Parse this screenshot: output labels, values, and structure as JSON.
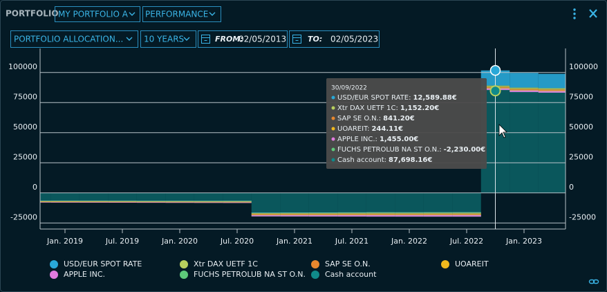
{
  "header": {
    "label": "PORTFOLIO",
    "portfolio": "MY PORTFOLIO A",
    "view": "PERFORMANCE"
  },
  "toolbar": {
    "allocation": "PORTFOLIO ALLOCATION...",
    "period": "10 YEARS",
    "from_label": "FROM:",
    "from": "02/05/2013",
    "to_label": "TO:",
    "to": "02/05/2023"
  },
  "chart_data": {
    "type": "stacked-area",
    "grid": true,
    "categories": [
      null,
      "Jan. 2019",
      null,
      "Jul. 2019",
      null,
      "Jan. 2020",
      null,
      "Jul. 2020",
      null,
      "Jan. 2021",
      null,
      "Jul. 2021",
      null,
      "Jan. 2022",
      null,
      "Jul. 2022",
      null,
      "Jan. 2023",
      null
    ],
    "ylim": [
      -30000,
      120000
    ],
    "yticks": [
      -25000,
      0,
      25000,
      50000,
      75000,
      100000
    ],
    "series": [
      {
        "name": "USD/EUR SPOT RATE",
        "color": "#29a8d8",
        "values": [
          0,
          0,
          0,
          0,
          0,
          0,
          0,
          0,
          0,
          0,
          0,
          0,
          0,
          0,
          0,
          0,
          12589.88,
          12200,
          11900
        ]
      },
      {
        "name": "Xtr DAX UETF 1C",
        "color": "#b8cf5e",
        "values": [
          600,
          620,
          640,
          650,
          600,
          610,
          580,
          620,
          900,
          950,
          1000,
          1050,
          1100,
          1080,
          1120,
          1140,
          1152.2,
          1160,
          1170
        ]
      },
      {
        "name": "SAP SE O.N.",
        "color": "#e8872e",
        "values": [
          300,
          310,
          320,
          330,
          300,
          310,
          300,
          320,
          800,
          820,
          830,
          850,
          860,
          840,
          830,
          835,
          841.2,
          850,
          860
        ]
      },
      {
        "name": "UOAREIT",
        "color": "#f0b81d",
        "values": [
          200,
          210,
          205,
          200,
          210,
          215,
          220,
          225,
          230,
          235,
          240,
          242,
          243,
          244,
          244,
          244,
          244.11,
          245,
          246
        ]
      },
      {
        "name": "APPLE INC.",
        "color": "#e07be0",
        "values": [
          500,
          520,
          540,
          560,
          580,
          600,
          620,
          640,
          1200,
          1250,
          1300,
          1350,
          1400,
          1420,
          1440,
          1450,
          1455.0,
          1460,
          1470
        ]
      },
      {
        "name": "FUCHS PETROLUB NA ST O.N.",
        "color": "#5ec97a",
        "values": [
          -1500,
          -1550,
          -1600,
          -1650,
          -1700,
          -1750,
          -1800,
          -1850,
          -2000,
          -2050,
          -2100,
          -2150,
          -2200,
          -2210,
          -2220,
          -2225,
          -2230.0,
          -2240,
          -2250
        ]
      },
      {
        "name": "Cash account",
        "color": "#108a8a",
        "values": [
          -6500,
          -6500,
          -6500,
          -6500,
          -6500,
          -6500,
          -6500,
          -6500,
          -17500,
          -17500,
          -17500,
          -17500,
          -17500,
          -17500,
          -17500,
          -17500,
          87698.16,
          86000,
          85500
        ]
      }
    ]
  },
  "tooltip": {
    "date": "30/09/2022",
    "rows": [
      {
        "label": "USD/EUR SPOT RATE:",
        "value": "12,589.88€"
      },
      {
        "label": "Xtr DAX UETF 1C:",
        "value": "1,152.20€"
      },
      {
        "label": "SAP SE O.N.:",
        "value": "841.20€"
      },
      {
        "label": "UOAREIT:",
        "value": "244.11€"
      },
      {
        "label": "APPLE INC.:",
        "value": "1,455.00€"
      },
      {
        "label": "FUCHS PETROLUB NA ST O.N.:",
        "value": "-2,230.00€"
      },
      {
        "label": "Cash account:",
        "value": "87,698.16€"
      }
    ]
  }
}
